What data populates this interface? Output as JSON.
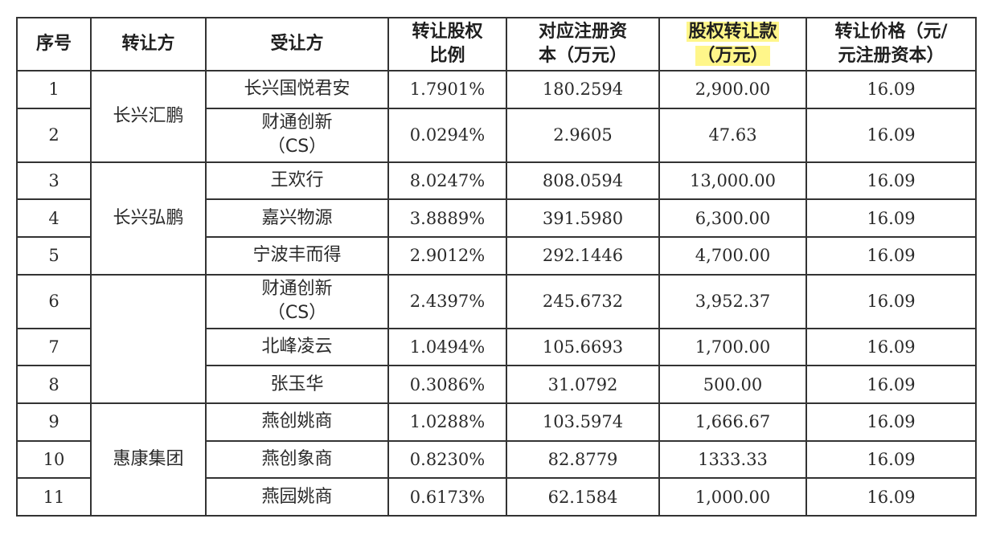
{
  "headers": {
    "seq": "序号",
    "transferor": "转让方",
    "transferee": "受让方",
    "ratio_line1": "转让股权",
    "ratio_line2": "比例",
    "capital_line1": "对应注册资",
    "capital_line2": "本（万元）",
    "payment_line1": "股权转让款",
    "payment_line2": "（万元）",
    "price_line1": "转让价格（元/",
    "price_line2": "元注册资本）"
  },
  "transferors": {
    "group1": "长兴汇鹏",
    "group2": "长兴弘鹏",
    "group3": "",
    "group4": "惠康集团"
  },
  "rows": [
    {
      "seq": "1",
      "transferee": "长兴国悦君安",
      "transferee2": "",
      "ratio": "1.7901%",
      "capital": "180.2594",
      "payment": "2,900.00",
      "price": "16.09"
    },
    {
      "seq": "2",
      "transferee": "财通创新",
      "transferee2": "（CS）",
      "ratio": "0.0294%",
      "capital": "2.9605",
      "payment": "47.63",
      "price": "16.09"
    },
    {
      "seq": "3",
      "transferee": "王欢行",
      "transferee2": "",
      "ratio": "8.0247%",
      "capital": "808.0594",
      "payment": "13,000.00",
      "price": "16.09"
    },
    {
      "seq": "4",
      "transferee": "嘉兴物源",
      "transferee2": "",
      "ratio": "3.8889%",
      "capital": "391.5980",
      "payment": "6,300.00",
      "price": "16.09"
    },
    {
      "seq": "5",
      "transferee": "宁波丰而得",
      "transferee2": "",
      "ratio": "2.9012%",
      "capital": "292.1446",
      "payment": "4,700.00",
      "price": "16.09"
    },
    {
      "seq": "6",
      "transferee": "财通创新",
      "transferee2": "（CS）",
      "ratio": "2.4397%",
      "capital": "245.6732",
      "payment": "3,952.37",
      "price": "16.09"
    },
    {
      "seq": "7",
      "transferee": "北峰凌云",
      "transferee2": "",
      "ratio": "1.0494%",
      "capital": "105.6693",
      "payment": "1,700.00",
      "price": "16.09"
    },
    {
      "seq": "8",
      "transferee": "张玉华",
      "transferee2": "",
      "ratio": "0.3086%",
      "capital": "31.0792",
      "payment": "500.00",
      "price": "16.09"
    },
    {
      "seq": "9",
      "transferee": "燕创姚商",
      "transferee2": "",
      "ratio": "1.0288%",
      "capital": "103.5974",
      "payment": "1,666.67",
      "price": "16.09"
    },
    {
      "seq": "10",
      "transferee": "燕创象商",
      "transferee2": "",
      "ratio": "0.8230%",
      "capital": "82.8779",
      "payment": "1333.33",
      "price": "16.09"
    },
    {
      "seq": "11",
      "transferee": "燕园姚商",
      "transferee2": "",
      "ratio": "0.6173%",
      "capital": "62.1584",
      "payment": "1,000.00",
      "price": "16.09"
    }
  ],
  "colors": {
    "highlight": "#fff68a",
    "border": "#333333"
  }
}
